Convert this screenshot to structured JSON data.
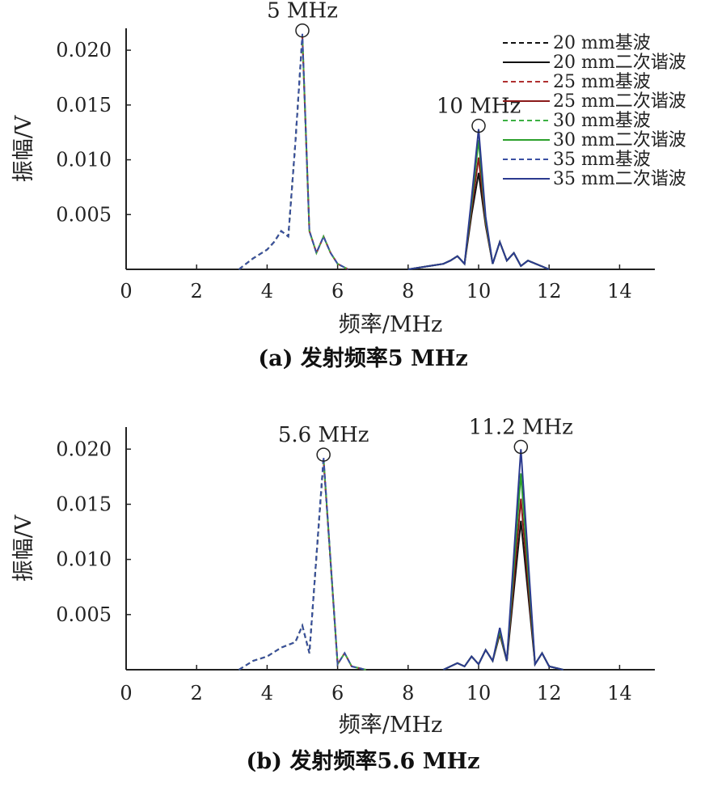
{
  "chart_data": [
    {
      "type": "line",
      "caption": "(a) 发射频率5 MHz",
      "xlabel": "频率/MHz",
      "ylabel": "振幅/V",
      "xlim": [
        0,
        15
      ],
      "ylim": [
        0,
        0.022
      ],
      "xticks": [
        "0",
        "2",
        "4",
        "6",
        "8",
        "10",
        "12",
        "14"
      ],
      "yticks": [
        "0.005",
        "0.010",
        "0.015",
        "0.020"
      ],
      "annotations": [
        {
          "text": "5 MHz",
          "x": 5.0,
          "y": 0.0218
        },
        {
          "text": "10 MHz",
          "x": 10.0,
          "y": 0.0131
        }
      ],
      "legend": {
        "position": "top-right"
      },
      "series": [
        {
          "name": "20 mm基波",
          "color": "#111111",
          "dash": true,
          "x": [
            3.2,
            3.6,
            4.0,
            4.2,
            4.4,
            4.6,
            4.8,
            5.0,
            5.2,
            5.4,
            5.6,
            5.8,
            6.0,
            6.3
          ],
          "y": [
            0,
            0.001,
            0.0018,
            0.0025,
            0.0035,
            0.003,
            0.0115,
            0.0212,
            0.0035,
            0.0015,
            0.003,
            0.0015,
            0.0005,
            0
          ]
        },
        {
          "name": "20 mm二次谐波",
          "color": "#111111",
          "dash": false,
          "x": [
            8.0,
            8.6,
            9.0,
            9.2,
            9.4,
            9.6,
            9.8,
            10.0,
            10.2,
            10.4,
            10.6,
            10.8,
            11.0,
            11.2,
            11.4,
            12.0
          ],
          "y": [
            0,
            0.0003,
            0.0005,
            0.0008,
            0.0012,
            0.0005,
            0.005,
            0.0088,
            0.004,
            0.0005,
            0.0025,
            0.0008,
            0.0015,
            0.0003,
            0.0008,
            0
          ]
        },
        {
          "name": "25 mm基波",
          "color": "#b03030",
          "dash": true,
          "x": [
            3.2,
            3.6,
            4.0,
            4.2,
            4.4,
            4.6,
            4.8,
            5.0,
            5.2,
            5.4,
            5.6,
            5.8,
            6.0,
            6.3
          ],
          "y": [
            0,
            0.001,
            0.0018,
            0.0025,
            0.0035,
            0.003,
            0.0115,
            0.0213,
            0.0035,
            0.0015,
            0.003,
            0.0015,
            0.0005,
            0
          ]
        },
        {
          "name": "25 mm二次谐波",
          "color": "#8b1a1a",
          "dash": false,
          "x": [
            8.0,
            8.6,
            9.0,
            9.2,
            9.4,
            9.6,
            9.8,
            10.0,
            10.2,
            10.4,
            10.6,
            10.8,
            11.0,
            11.2,
            11.4,
            12.0
          ],
          "y": [
            0,
            0.0003,
            0.0005,
            0.0008,
            0.0012,
            0.0005,
            0.0055,
            0.0102,
            0.0042,
            0.0005,
            0.0025,
            0.0008,
            0.0015,
            0.0003,
            0.0008,
            0
          ]
        },
        {
          "name": "30 mm基波",
          "color": "#3cb043",
          "dash": true,
          "x": [
            3.2,
            3.6,
            4.0,
            4.2,
            4.4,
            4.6,
            4.8,
            5.0,
            5.2,
            5.4,
            5.6,
            5.8,
            6.0,
            6.3
          ],
          "y": [
            0,
            0.001,
            0.0018,
            0.0025,
            0.0035,
            0.003,
            0.0115,
            0.0214,
            0.0035,
            0.0015,
            0.003,
            0.0015,
            0.0005,
            0
          ]
        },
        {
          "name": "30 mm二次谐波",
          "color": "#2ca02c",
          "dash": false,
          "x": [
            8.0,
            8.6,
            9.0,
            9.2,
            9.4,
            9.6,
            9.8,
            10.0,
            10.2,
            10.4,
            10.6,
            10.8,
            11.0,
            11.2,
            11.4,
            12.0
          ],
          "y": [
            0,
            0.0003,
            0.0005,
            0.0008,
            0.0012,
            0.0005,
            0.006,
            0.0118,
            0.0045,
            0.0005,
            0.0025,
            0.0008,
            0.0015,
            0.0003,
            0.0008,
            0
          ]
        },
        {
          "name": "35 mm基波",
          "color": "#3a4fa3",
          "dash": true,
          "x": [
            3.2,
            3.6,
            4.0,
            4.2,
            4.4,
            4.6,
            4.8,
            5.0,
            5.2,
            5.4,
            5.6,
            5.8,
            6.0,
            6.3
          ],
          "y": [
            0,
            0.001,
            0.0018,
            0.0025,
            0.0035,
            0.003,
            0.0115,
            0.0215,
            0.0035,
            0.0015,
            0.003,
            0.0015,
            0.0005,
            0
          ]
        },
        {
          "name": "35 mm二次谐波",
          "color": "#2b3a8f",
          "dash": false,
          "x": [
            8.0,
            8.6,
            9.0,
            9.2,
            9.4,
            9.6,
            9.8,
            10.0,
            10.2,
            10.4,
            10.6,
            10.8,
            11.0,
            11.2,
            11.4,
            12.0
          ],
          "y": [
            0,
            0.0003,
            0.0005,
            0.0008,
            0.0012,
            0.0005,
            0.0065,
            0.0128,
            0.0048,
            0.0005,
            0.0025,
            0.0008,
            0.0015,
            0.0003,
            0.0008,
            0
          ]
        }
      ]
    },
    {
      "type": "line",
      "caption": "(b) 发射频率5.6 MHz",
      "xlabel": "频率/MHz",
      "ylabel": "振幅/V",
      "xlim": [
        0,
        15
      ],
      "ylim": [
        0,
        0.022
      ],
      "xticks": [
        "0",
        "2",
        "4",
        "6",
        "8",
        "10",
        "12",
        "14"
      ],
      "yticks": [
        "0.005",
        "0.010",
        "0.015",
        "0.020"
      ],
      "annotations": [
        {
          "text": "5.6 MHz",
          "x": 5.6,
          "y": 0.0195
        },
        {
          "text": "11.2 MHz",
          "x": 11.2,
          "y": 0.0202
        }
      ],
      "series": [
        {
          "name": "20 mm基波",
          "color": "#111111",
          "dash": true,
          "x": [
            3.2,
            3.6,
            4.0,
            4.4,
            4.8,
            5.0,
            5.2,
            5.6,
            6.0,
            6.2,
            6.4,
            6.8
          ],
          "y": [
            0,
            0.0008,
            0.0012,
            0.002,
            0.0025,
            0.004,
            0.0015,
            0.019,
            0.0005,
            0.0015,
            0.0003,
            0
          ]
        },
        {
          "name": "20 mm二次谐波",
          "color": "#111111",
          "dash": false,
          "x": [
            9.0,
            9.4,
            9.6,
            9.8,
            10.0,
            10.2,
            10.4,
            10.6,
            10.8,
            11.2,
            11.6,
            11.8,
            12.0,
            12.4
          ],
          "y": [
            0,
            0.0006,
            0.0003,
            0.0012,
            0.0005,
            0.0018,
            0.0008,
            0.0032,
            0.0008,
            0.0135,
            0.0005,
            0.0015,
            0.0003,
            0
          ]
        },
        {
          "name": "25 mm基波",
          "color": "#b03030",
          "dash": true,
          "x": [
            3.2,
            3.6,
            4.0,
            4.4,
            4.8,
            5.0,
            5.2,
            5.6,
            6.0,
            6.2,
            6.4,
            6.8
          ],
          "y": [
            0,
            0.0008,
            0.0012,
            0.002,
            0.0025,
            0.004,
            0.0015,
            0.0191,
            0.0005,
            0.0015,
            0.0003,
            0
          ]
        },
        {
          "name": "25 mm二次谐波",
          "color": "#8b1a1a",
          "dash": false,
          "x": [
            9.0,
            9.4,
            9.6,
            9.8,
            10.0,
            10.2,
            10.4,
            10.6,
            10.8,
            11.2,
            11.6,
            11.8,
            12.0,
            12.4
          ],
          "y": [
            0,
            0.0006,
            0.0003,
            0.0012,
            0.0005,
            0.0018,
            0.0008,
            0.0033,
            0.0008,
            0.0155,
            0.0005,
            0.0015,
            0.0003,
            0
          ]
        },
        {
          "name": "30 mm基波",
          "color": "#3cb043",
          "dash": true,
          "x": [
            3.2,
            3.6,
            4.0,
            4.4,
            4.8,
            5.0,
            5.2,
            5.6,
            6.0,
            6.2,
            6.4,
            6.8
          ],
          "y": [
            0,
            0.0008,
            0.0012,
            0.002,
            0.0025,
            0.004,
            0.0015,
            0.0192,
            0.0005,
            0.0015,
            0.0003,
            0
          ]
        },
        {
          "name": "30 mm二次谐波",
          "color": "#2ca02c",
          "dash": false,
          "x": [
            9.0,
            9.4,
            9.6,
            9.8,
            10.0,
            10.2,
            10.4,
            10.6,
            10.8,
            11.2,
            11.6,
            11.8,
            12.0,
            12.4
          ],
          "y": [
            0,
            0.0006,
            0.0003,
            0.0012,
            0.0005,
            0.0018,
            0.0008,
            0.0035,
            0.0008,
            0.0178,
            0.0005,
            0.0015,
            0.0003,
            0
          ]
        },
        {
          "name": "35 mm基波",
          "color": "#3a4fa3",
          "dash": true,
          "x": [
            3.2,
            3.6,
            4.0,
            4.4,
            4.8,
            5.0,
            5.2,
            5.6,
            6.0,
            6.2,
            6.4,
            6.8
          ],
          "y": [
            0,
            0.0008,
            0.0012,
            0.002,
            0.0025,
            0.004,
            0.0015,
            0.0193,
            0.0005,
            0.0015,
            0.0003,
            0
          ]
        },
        {
          "name": "35 mm二次谐波",
          "color": "#2b3a8f",
          "dash": false,
          "x": [
            9.0,
            9.4,
            9.6,
            9.8,
            10.0,
            10.2,
            10.4,
            10.6,
            10.8,
            11.2,
            11.6,
            11.8,
            12.0,
            12.4
          ],
          "y": [
            0,
            0.0006,
            0.0003,
            0.0012,
            0.0005,
            0.0018,
            0.0008,
            0.0038,
            0.0008,
            0.02,
            0.0005,
            0.0015,
            0.0003,
            0
          ]
        }
      ]
    }
  ]
}
